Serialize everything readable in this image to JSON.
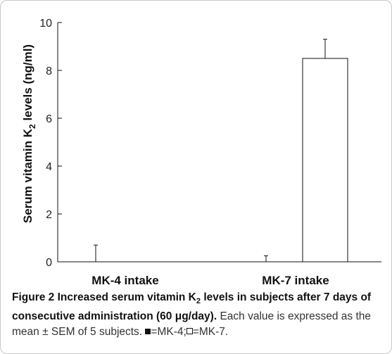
{
  "chart_data": {
    "type": "bar",
    "categories": [
      "MK-4 intake",
      "MK-7 intake"
    ],
    "series": [
      {
        "name": "MK-4",
        "values": [
          0.0,
          0.0
        ],
        "sem": [
          0.7,
          0.25
        ],
        "fill": "#111111"
      },
      {
        "name": "MK-7",
        "values": [
          0.0,
          8.5
        ],
        "sem": [
          0.0,
          0.8
        ],
        "fill": "#ffffff"
      }
    ],
    "ylabel": {
      "main": "Serum vitamin K",
      "sub": "2",
      "tail": " levels  (ng/ml)"
    },
    "ylim": [
      0,
      10
    ],
    "yticks": [
      "0",
      "2",
      "4",
      "6",
      "8",
      "10"
    ],
    "grid": false
  },
  "caption": {
    "figure_label": "Figure 2",
    "title_part1": " Increased serum vitamin K",
    "title_sub": "2",
    "title_part2": " levels in subjects after 7 days of consecutive administration (60 μg/day).",
    "body": " Each value is expressed as the mean ± SEM of 5 subjects. ",
    "legend_mk4": "=MK-4;",
    "legend_mk7": "=MK-7."
  },
  "colors": {
    "ink": "#111111",
    "frame": "#c8c8c8"
  }
}
